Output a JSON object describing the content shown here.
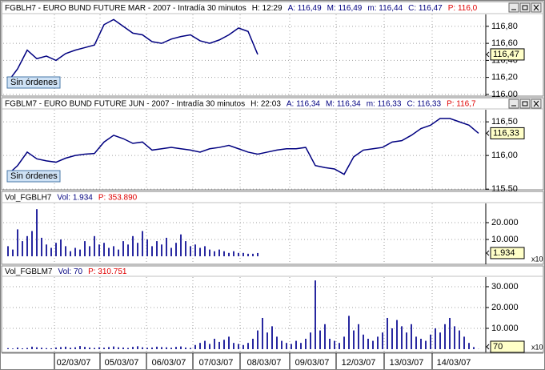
{
  "chart_data": [
    {
      "type": "line",
      "color": "#000080",
      "header": [
        {
          "text": "FGBLH7 - EURO BUND FUTURE  MAR - 2007 - Intradía 30 minutos",
          "color": "#000000"
        },
        {
          "text": "H: 12:29",
          "color": "#000000"
        },
        {
          "text": "A: 116,49",
          "color": "#000080"
        },
        {
          "text": "M: 116,49",
          "color": "#000080"
        },
        {
          "text": "m: 116,44",
          "color": "#000080"
        },
        {
          "text": "C: 116,47",
          "color": "#000080"
        },
        {
          "text": "P: 116,0",
          "color": "#e00000"
        }
      ],
      "button": "Sin órdenes",
      "last_label": "116,47",
      "values": [
        116.15,
        116.3,
        116.52,
        116.42,
        116.45,
        116.4,
        116.48,
        116.52,
        116.55,
        116.58,
        116.82,
        116.88,
        116.8,
        116.72,
        116.7,
        116.62,
        116.6,
        116.65,
        116.68,
        116.7,
        116.63,
        116.6,
        116.64,
        116.7,
        116.78,
        116.74,
        116.47
      ],
      "ylim": [
        115.98,
        116.94
      ],
      "yticks": [
        {
          "value": 116.8,
          "label": "116,80"
        },
        {
          "value": 116.6,
          "label": "116,60"
        },
        {
          "value": 116.4,
          "label": "116,40"
        },
        {
          "value": 116.2,
          "label": "116,20"
        },
        {
          "value": 116.0,
          "label": "116,00"
        }
      ]
    },
    {
      "type": "line",
      "color": "#000080",
      "header": [
        {
          "text": "FGBLM7 - EURO BUND FUTURE  JUN - 2007 - Intradía 30 minutos",
          "color": "#000000"
        },
        {
          "text": "H: 22:03",
          "color": "#000000"
        },
        {
          "text": "A: 116,34",
          "color": "#000080"
        },
        {
          "text": "M: 116,34",
          "color": "#000080"
        },
        {
          "text": "m: 116,33",
          "color": "#000080"
        },
        {
          "text": "C: 116,33",
          "color": "#000080"
        },
        {
          "text": "P: 116,7",
          "color": "#e00000"
        }
      ],
      "button": "Sin órdenes",
      "last_label": "116,33",
      "values": [
        115.72,
        115.85,
        116.05,
        115.95,
        115.92,
        115.9,
        115.96,
        116.0,
        116.02,
        116.03,
        116.2,
        116.3,
        116.25,
        116.18,
        116.2,
        116.08,
        116.1,
        116.12,
        116.1,
        116.08,
        116.05,
        116.1,
        116.12,
        116.15,
        116.1,
        116.05,
        116.02,
        116.05,
        116.08,
        116.1,
        116.1,
        116.12,
        115.85,
        115.82,
        115.8,
        115.72,
        115.98,
        116.08,
        116.1,
        116.12,
        116.2,
        116.22,
        116.3,
        116.4,
        116.45,
        116.55,
        116.55,
        116.5,
        116.45,
        116.33
      ],
      "ylim": [
        115.49,
        116.68
      ],
      "yticks": [
        {
          "value": 116.5,
          "label": "116,50"
        },
        {
          "value": 116.0,
          "label": "116,00"
        },
        {
          "value": 115.5,
          "label": "115,50"
        }
      ]
    },
    {
      "type": "bar",
      "color": "#2828a0",
      "header": [
        {
          "text": "Vol_FGBLH7",
          "color": "#000000"
        },
        {
          "text": "Vol: 1.934",
          "color": "#000080"
        },
        {
          "text": "P: 353.890",
          "color": "#e00000"
        }
      ],
      "last_label": "1.934",
      "scale_note": "x10",
      "values": [
        6000,
        4000,
        16000,
        9000,
        12000,
        15000,
        28000,
        11000,
        7000,
        5000,
        8000,
        10000,
        6000,
        3000,
        5000,
        4000,
        9000,
        6000,
        12000,
        7000,
        8000,
        5000,
        6000,
        4000,
        9000,
        7000,
        12000,
        8000,
        15000,
        10000,
        6000,
        9000,
        7000,
        11000,
        5000,
        8000,
        13000,
        9000,
        6000,
        7000,
        5000,
        6000,
        4000,
        3000,
        4000,
        3000,
        2000,
        3000,
        2000,
        2000,
        1500,
        1500,
        1934
      ],
      "ylim": [
        -4760,
        31430
      ],
      "yticks": [
        {
          "value": 20000,
          "label": "20.000"
        },
        {
          "value": 10000,
          "label": "10.000"
        }
      ]
    },
    {
      "type": "bar",
      "color": "#2828a0",
      "header": [
        {
          "text": "Vol_FGBLM7",
          "color": "#000000"
        },
        {
          "text": "Vol: 70",
          "color": "#000080"
        },
        {
          "text": "P: 310.751",
          "color": "#e00000"
        }
      ],
      "last_label": "70",
      "scale_note": "x10",
      "values": [
        500,
        300,
        800,
        400,
        600,
        1200,
        900,
        700,
        500,
        400,
        800,
        1000,
        1200,
        700,
        900,
        1500,
        1100,
        800,
        600,
        900,
        700,
        1000,
        1300,
        900,
        800,
        600,
        1100,
        1400,
        900,
        700,
        800,
        1200,
        1000,
        900,
        700,
        1100,
        1300,
        800,
        600,
        2000,
        3000,
        4000,
        2500,
        5000,
        3500,
        4500,
        6000,
        3000,
        2500,
        2000,
        3000,
        5000,
        9000,
        15000,
        8000,
        11000,
        6000,
        4000,
        3000,
        2500,
        4000,
        3000,
        5000,
        8000,
        33000,
        9000,
        12000,
        5000,
        4000,
        3000,
        6000,
        16000,
        9000,
        12000,
        7000,
        5000,
        4000,
        6000,
        8000,
        15000,
        10000,
        14000,
        11000,
        8000,
        12000,
        6000,
        5000,
        4000,
        7000,
        10000,
        8000,
        12000,
        15000,
        11000,
        9000,
        6000,
        3000,
        1000,
        70
      ],
      "ylim": [
        -1540,
        34600
      ],
      "yticks": [
        {
          "value": 30000,
          "label": "30.000"
        },
        {
          "value": 20000,
          "label": "20.000"
        },
        {
          "value": 10000,
          "label": "10.000"
        }
      ]
    }
  ],
  "time_axis": {
    "labels": [
      "02/03/07",
      "05/03/07",
      "06/03/07",
      "07/03/07",
      "08/03/07",
      "09/03/07",
      "12/03/07",
      "13/03/07",
      "14/03/07"
    ]
  }
}
